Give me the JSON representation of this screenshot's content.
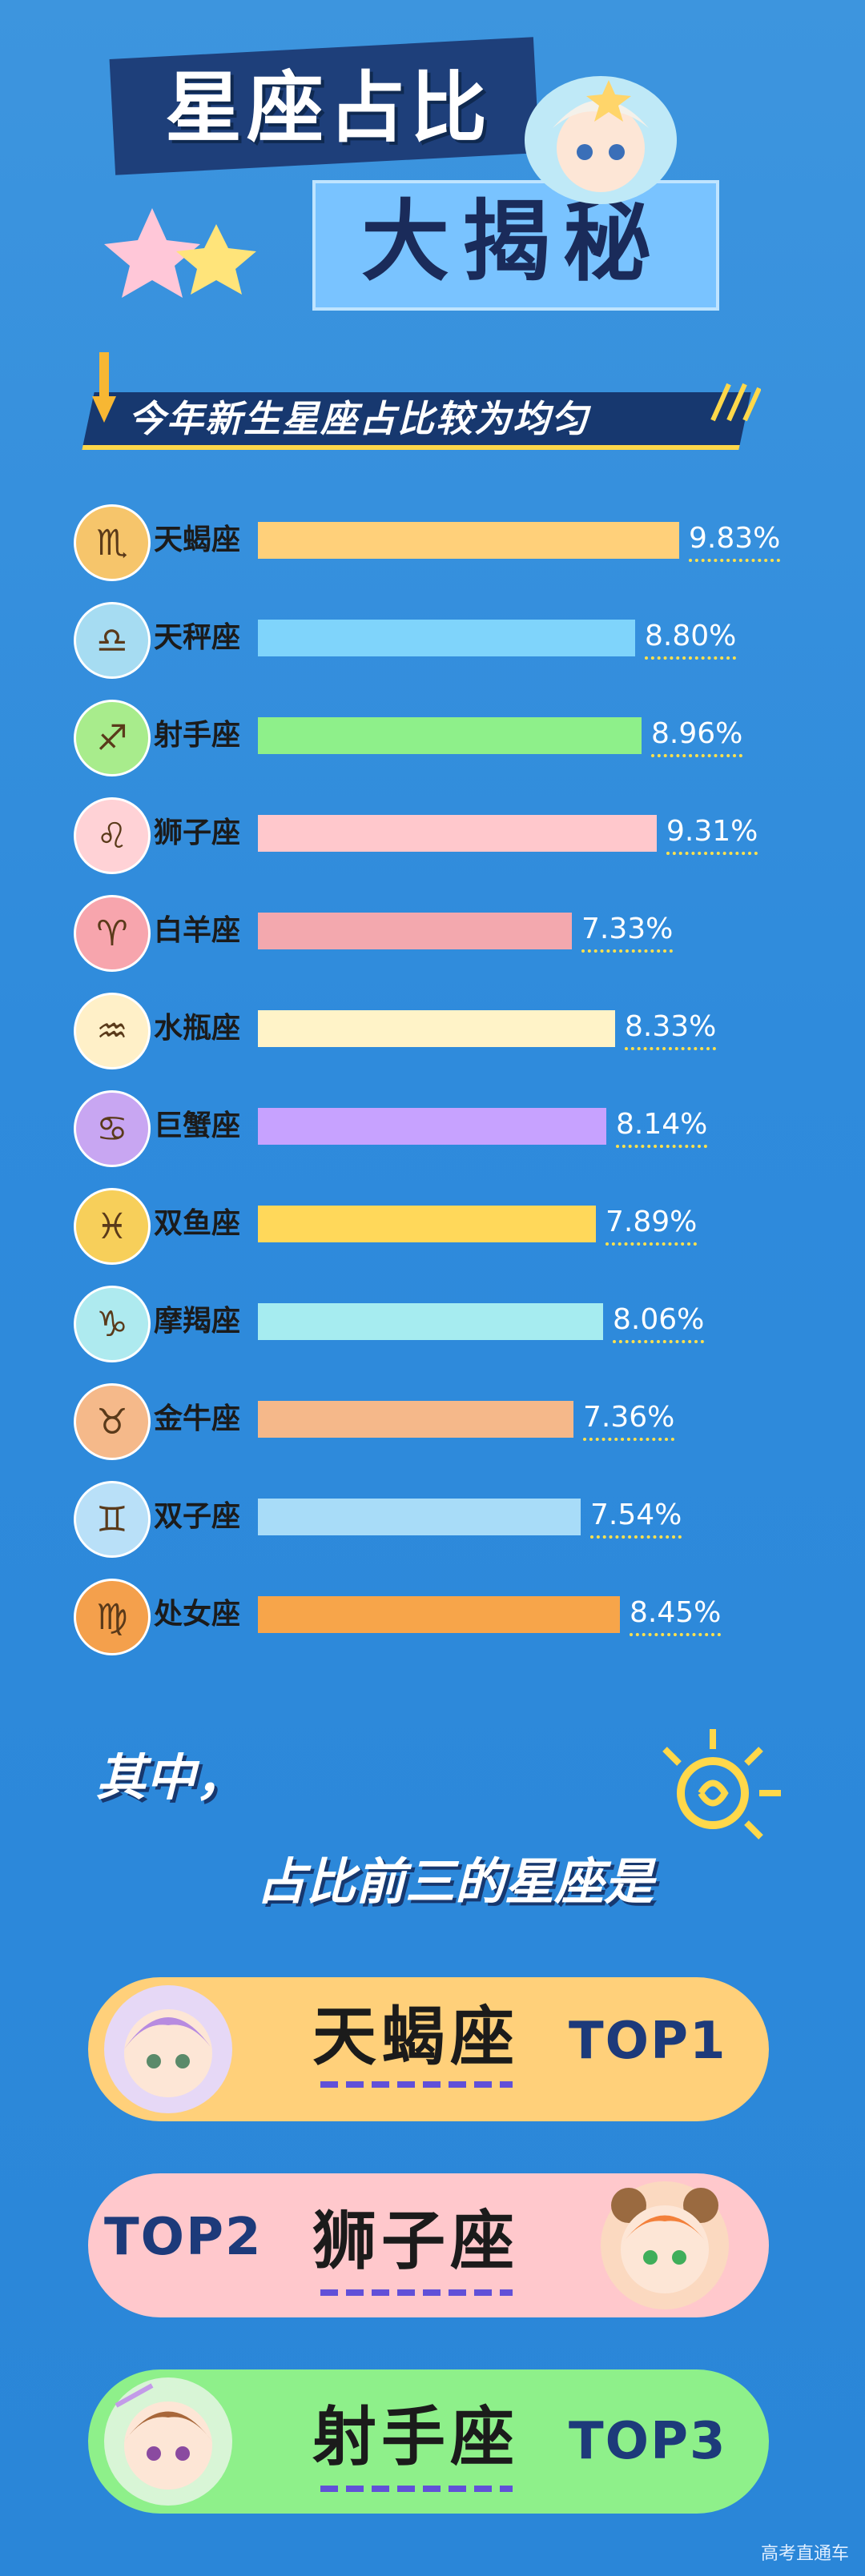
{
  "title": {
    "line1": "星座占比",
    "line2": "大揭秘"
  },
  "subtitle": "今年新生星座占比较为均匀",
  "chart_data": {
    "type": "bar",
    "orientation": "horizontal",
    "title": "今年新生星座占比较为均匀",
    "categories": [
      "天蝎座",
      "天秤座",
      "射手座",
      "狮子座",
      "白羊座",
      "水瓶座",
      "巨蟹座",
      "双鱼座",
      "摩羯座",
      "金牛座",
      "双子座",
      "处女座"
    ],
    "values": [
      9.83,
      8.8,
      8.96,
      9.31,
      7.33,
      8.33,
      8.14,
      7.89,
      8.06,
      7.36,
      7.54,
      8.45
    ],
    "value_labels": [
      "9.83%",
      "8.80%",
      "8.96%",
      "9.31%",
      "7.33%",
      "8.33%",
      "8.14%",
      "7.89%",
      "8.06%",
      "7.36%",
      "7.54%",
      "8.45%"
    ],
    "colors": [
      "#ffd07a",
      "#7fd4fb",
      "#8ef08a",
      "#ffc8cc",
      "#f3a8ae",
      "#fff3c8",
      "#c7a2ff",
      "#ffd85a",
      "#a6ecf0",
      "#f5b88a",
      "#a8dcf8",
      "#f7a54a"
    ],
    "icon_colors": [
      "#f6c56b",
      "#a6dcf2",
      "#a8ec8c",
      "#ffd2d6",
      "#f7a5ad",
      "#fff0c8",
      "#c8a6f2",
      "#f7cf5a",
      "#aeeaef",
      "#f5b98a",
      "#b9e0f8",
      "#f4a04c"
    ],
    "icons": [
      "scorpio-icon",
      "libra-icon",
      "sagittarius-icon",
      "leo-icon",
      "aries-icon",
      "aquarius-icon",
      "cancer-icon",
      "pisces-icon",
      "capricorn-icon",
      "taurus-icon",
      "gemini-icon",
      "virgo-icon"
    ],
    "glyphs": [
      "♏",
      "♎",
      "♐",
      "♌",
      "♈",
      "♒",
      "♋",
      "♓",
      "♑",
      "♉",
      "♊",
      "♍"
    ]
  },
  "highlight": {
    "line1": "其中，",
    "line2": "占比前三的星座是"
  },
  "top3": [
    {
      "name": "天蝎座",
      "rank": "TOP1",
      "color": "#ffd07a"
    },
    {
      "name": "狮子座",
      "rank": "TOP2",
      "color": "#ffc8cc"
    },
    {
      "name": "射手座",
      "rank": "TOP3",
      "color": "#8ef08a"
    }
  ],
  "watermark": "高考直通车"
}
